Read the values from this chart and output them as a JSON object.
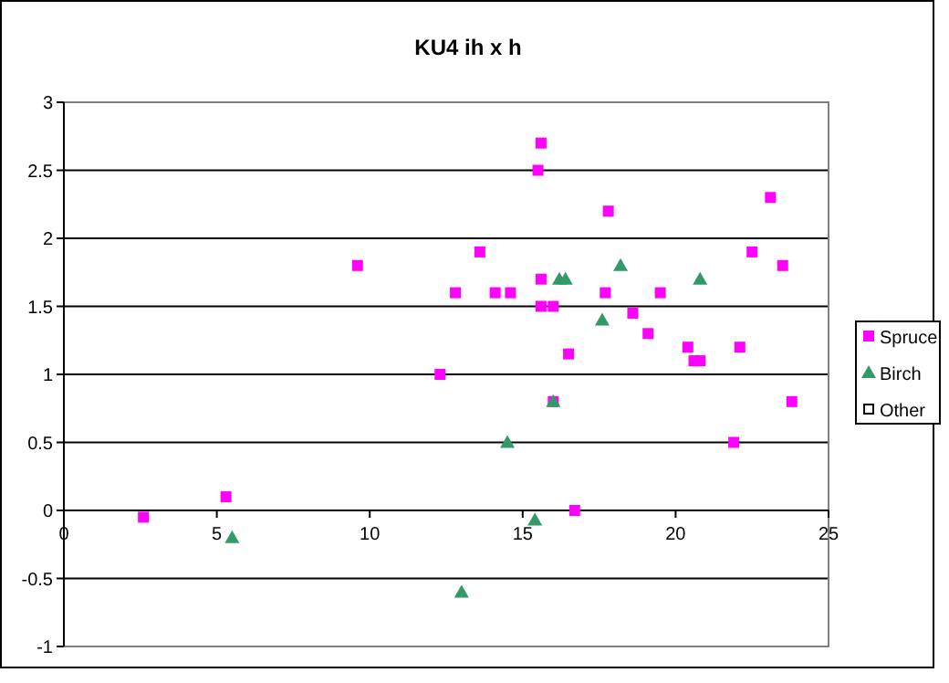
{
  "chart_data": {
    "type": "scatter",
    "title": "KU4 ih x h",
    "xlim": [
      0,
      25
    ],
    "xticks": [
      0,
      5,
      10,
      15,
      20,
      25
    ],
    "ylim": [
      -1,
      3
    ],
    "yticks": [
      -1,
      -0.5,
      0,
      0.5,
      1,
      1.5,
      2,
      2.5,
      3
    ],
    "grid": "y",
    "legend": "right",
    "series": [
      {
        "name": "Spruce",
        "color": "#ff00ff",
        "marker": "square",
        "x": [
          2.6,
          5.3,
          9.6,
          12.3,
          12.8,
          13.6,
          14.1,
          14.6,
          15.5,
          15.6,
          15.6,
          15.6,
          16.0,
          16.0,
          16.5,
          16.7,
          17.7,
          17.8,
          18.6,
          19.1,
          19.5,
          20.4,
          20.6,
          20.8,
          22.1,
          21.9,
          22.5,
          23.1,
          23.5,
          23.8
        ],
        "values": [
          -0.05,
          0.1,
          1.8,
          1.0,
          1.6,
          1.9,
          1.6,
          1.6,
          2.5,
          2.7,
          1.7,
          1.5,
          1.5,
          0.8,
          1.15,
          0.0,
          1.6,
          2.2,
          1.45,
          1.3,
          1.6,
          1.2,
          1.1,
          1.1,
          1.2,
          0.5,
          1.9,
          2.3,
          1.8,
          0.8
        ]
      },
      {
        "name": "Birch",
        "color": "#339966",
        "marker": "triangle",
        "x": [
          5.5,
          13.0,
          14.5,
          15.4,
          16.0,
          16.2,
          16.4,
          17.6,
          18.2,
          20.8
        ],
        "values": [
          -0.2,
          -0.6,
          0.5,
          -0.07,
          0.8,
          1.7,
          1.7,
          1.4,
          1.8,
          1.7
        ]
      },
      {
        "name": "Other",
        "color": "#000000",
        "marker": "hollow-square"
      }
    ]
  }
}
